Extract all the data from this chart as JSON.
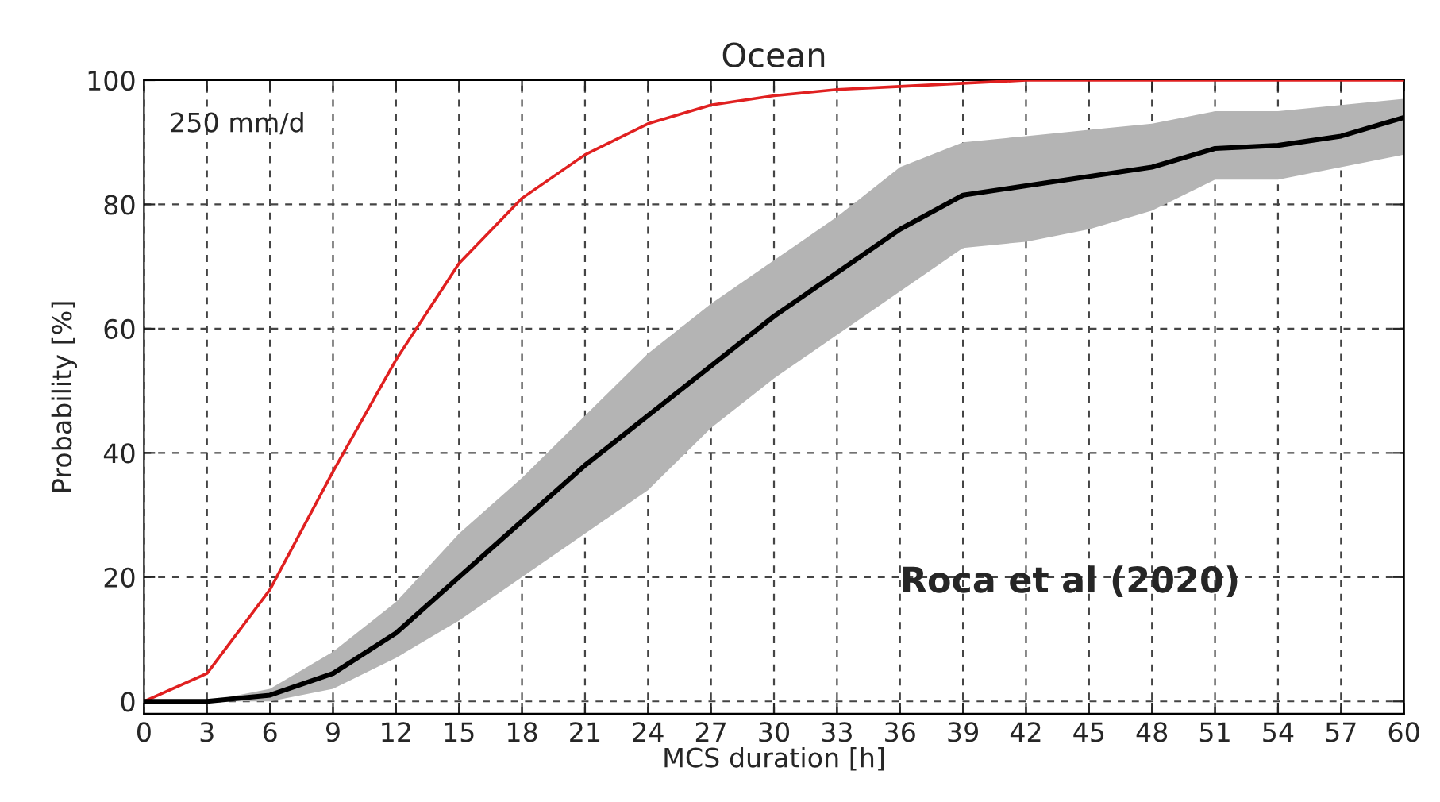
{
  "chart_data": {
    "type": "line",
    "title": "Ocean",
    "xlabel": "MCS duration [h]",
    "ylabel": "Probability [%]",
    "x": [
      0,
      3,
      6,
      9,
      12,
      15,
      18,
      21,
      24,
      27,
      30,
      33,
      36,
      39,
      42,
      45,
      48,
      51,
      54,
      57,
      60
    ],
    "series": [
      {
        "color": "#e02020",
        "values": [
          0,
          4.5,
          18,
          37,
          55,
          70.5,
          81,
          88,
          93,
          96,
          97.5,
          98.5,
          99,
          99.5,
          100,
          100,
          100,
          100,
          100,
          100,
          100
        ]
      },
      {
        "color": "#000000",
        "values": [
          0,
          0,
          1,
          4.5,
          11,
          20,
          29,
          38,
          46,
          54,
          62,
          69,
          76,
          81.5,
          83,
          84.5,
          86,
          89,
          89.5,
          91,
          94
        ],
        "lower": [
          0,
          0,
          0,
          2,
          7,
          13,
          20,
          27,
          34,
          44,
          52,
          59,
          66,
          73,
          74,
          76,
          79,
          84,
          84,
          86,
          88
        ],
        "upper": [
          0,
          0,
          2,
          8,
          16,
          27,
          36,
          46,
          56,
          64,
          71,
          78,
          86,
          90,
          91,
          92,
          93,
          95,
          95,
          96,
          97
        ]
      }
    ],
    "xlim": [
      0,
      60
    ],
    "xticks": [
      0,
      3,
      6,
      9,
      12,
      15,
      18,
      21,
      24,
      27,
      30,
      33,
      36,
      39,
      42,
      45,
      48,
      51,
      54,
      57,
      60
    ],
    "ylim": [
      -2,
      100
    ],
    "yticks": [
      0,
      20,
      40,
      60,
      80,
      100
    ],
    "grid": true,
    "line_style": "solid",
    "annotations": [
      "250 mm/d",
      "Roca et al (2020)"
    ]
  }
}
